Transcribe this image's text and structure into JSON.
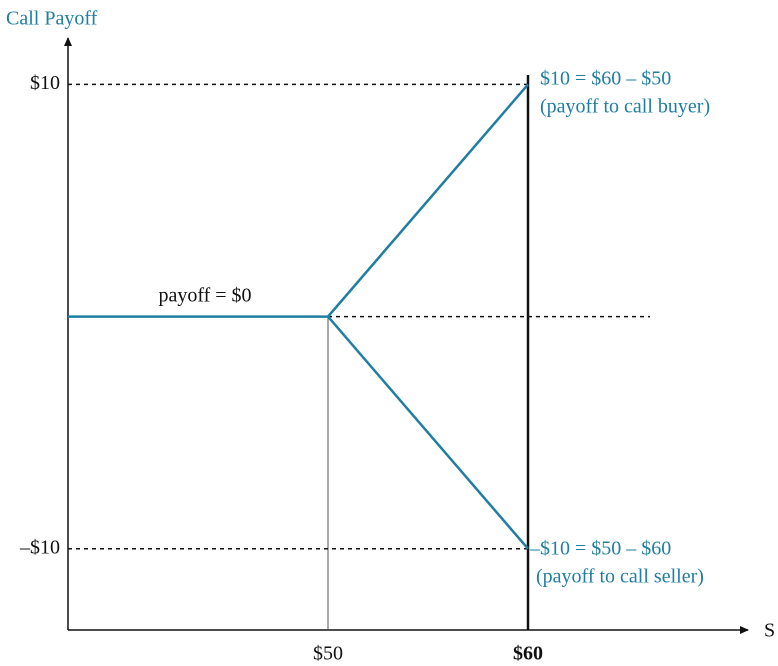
{
  "chart_data": {
    "type": "line",
    "ylabel": "Call Payoff",
    "xlabel": "S",
    "x": [
      37,
      50,
      60
    ],
    "series": [
      {
        "color": "#1f7ea1",
        "values": [
          0,
          0,
          10
        ]
      },
      {
        "color": "#1f7ea1",
        "values": [
          null,
          0,
          -10
        ]
      }
    ],
    "xlim": [
      37,
      71
    ],
    "ylim": [
      -13.5,
      12
    ],
    "xticks": [
      {
        "value": 50,
        "label": "$50"
      },
      {
        "value": 60,
        "label": "$60"
      }
    ],
    "yticks": [
      {
        "value": 10,
        "label": "$10"
      },
      {
        "value": -10,
        "label": "–$10"
      }
    ],
    "annotations": [
      "payoff = $0",
      "$10 = $60 – $50",
      "(payoff to call buyer)",
      "–$10 = $50 – $60",
      "(payoff to call seller)"
    ]
  }
}
